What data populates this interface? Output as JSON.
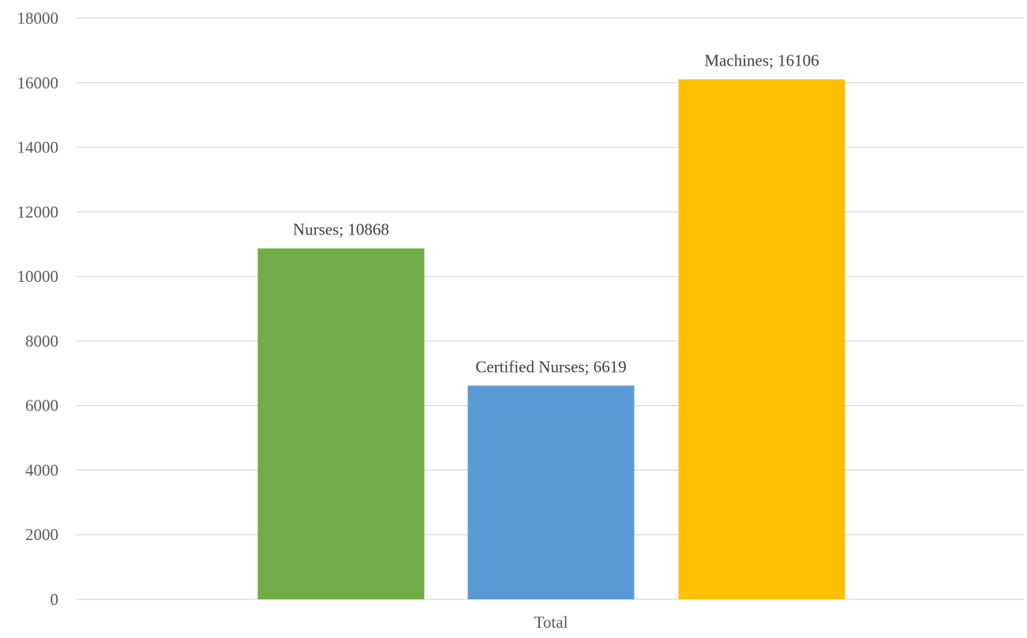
{
  "chart_data": {
    "type": "bar",
    "title": "",
    "xlabel": "",
    "ylabel": "",
    "categories": [
      "Total"
    ],
    "series": [
      {
        "name": "Nurses",
        "values": [
          10868
        ],
        "color": "#70ad47",
        "label": "Nurses; 10868"
      },
      {
        "name": "Certified Nurses",
        "values": [
          6619
        ],
        "color": "#5b9bd5",
        "label": "Certified Nurses; 6619"
      },
      {
        "name": "Machines",
        "values": [
          16106
        ],
        "color": "#ffc000",
        "label": "Machines; 16106"
      }
    ],
    "ylim": [
      0,
      18000
    ],
    "y_ticks": [
      "0",
      "2000",
      "4000",
      "6000",
      "8000",
      "10000",
      "12000",
      "14000",
      "16000",
      "18000"
    ],
    "grid": true,
    "legend": "none"
  }
}
